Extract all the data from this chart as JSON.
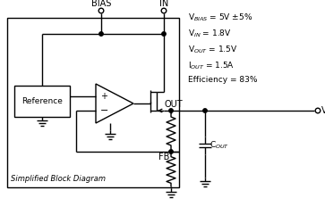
{
  "background_color": "#ffffff",
  "line_color": "#000000",
  "lw": 1.0,
  "box_label": "Simplified Block Diagram",
  "ref_label": "Reference",
  "bias_label": "BIAS",
  "in_label": "IN",
  "out_label": "OUT",
  "fb_label": "FB",
  "vout_label": "V$_{OUT}$",
  "cout_label": "C$_{OUT}$",
  "specs": [
    "V$_{BIAS}$ = 5V ±5%",
    "V$_{IN}$ = 1.8V",
    "V$_{OUT}$ = 1.5V",
    "I$_{OUT}$ = 1.5A",
    "Efficiency = 83%"
  ],
  "figsize": [
    3.63,
    2.41
  ],
  "dpi": 100
}
